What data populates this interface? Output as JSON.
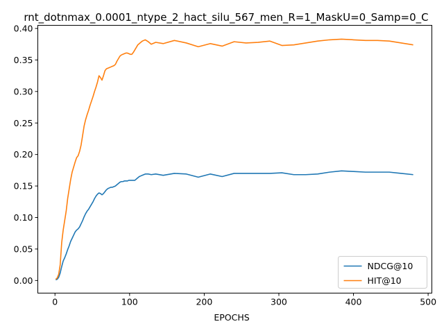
{
  "chart_data": {
    "type": "line",
    "title": "rnt_dotnmax_0.0001_ntype_2_hact_silu_567_men_R=1_MaskU=0_Samp=0_C",
    "xlabel": "EPOCHS",
    "ylabel": "",
    "xlim": [
      -23,
      505
    ],
    "ylim": [
      -0.02,
      0.405
    ],
    "xticks": [
      0,
      100,
      200,
      300,
      400,
      500
    ],
    "yticks": [
      0.0,
      0.05,
      0.1,
      0.15,
      0.2,
      0.25,
      0.3,
      0.35,
      0.4
    ],
    "grid": false,
    "legend_position": "lower-right",
    "series": [
      {
        "name": "NDCG@10",
        "color": "#1f77b4",
        "x": [
          1,
          3,
          5,
          7,
          9,
          11,
          13,
          15,
          17,
          19,
          21,
          23,
          25,
          27,
          29,
          31,
          33,
          35,
          37,
          39,
          41,
          43,
          45,
          47,
          49,
          51,
          53,
          55,
          57,
          59,
          61,
          63,
          65,
          67,
          69,
          71,
          73,
          75,
          77,
          79,
          81,
          83,
          85,
          87,
          89,
          91,
          93,
          95,
          97,
          99,
          101,
          103,
          105,
          107,
          109,
          111,
          113,
          115,
          117,
          119,
          121,
          125,
          129,
          135,
          145,
          160,
          176,
          192,
          208,
          224,
          240,
          256,
          272,
          288,
          304,
          320,
          336,
          352,
          368,
          384,
          400,
          416,
          432,
          448,
          464,
          480
        ],
        "values": [
          0.001,
          0.002,
          0.005,
          0.012,
          0.022,
          0.031,
          0.036,
          0.042,
          0.049,
          0.055,
          0.062,
          0.067,
          0.072,
          0.077,
          0.08,
          0.082,
          0.085,
          0.09,
          0.095,
          0.101,
          0.106,
          0.11,
          0.113,
          0.117,
          0.121,
          0.125,
          0.13,
          0.134,
          0.137,
          0.139,
          0.138,
          0.136,
          0.138,
          0.141,
          0.144,
          0.146,
          0.147,
          0.148,
          0.148,
          0.149,
          0.15,
          0.152,
          0.154,
          0.156,
          0.157,
          0.157,
          0.158,
          0.158,
          0.158,
          0.159,
          0.159,
          0.159,
          0.159,
          0.159,
          0.161,
          0.163,
          0.165,
          0.166,
          0.167,
          0.168,
          0.169,
          0.169,
          0.168,
          0.169,
          0.167,
          0.17,
          0.169,
          0.164,
          0.169,
          0.165,
          0.17,
          0.17,
          0.17,
          0.17,
          0.171,
          0.168,
          0.168,
          0.169,
          0.172,
          0.174,
          0.173,
          0.172,
          0.172,
          0.172,
          0.17,
          0.168
        ]
      },
      {
        "name": "HIT@10",
        "color": "#ff7f0e",
        "x": [
          1,
          3,
          5,
          7,
          9,
          11,
          13,
          15,
          17,
          19,
          21,
          23,
          25,
          27,
          29,
          31,
          33,
          35,
          37,
          39,
          41,
          43,
          45,
          47,
          49,
          51,
          53,
          55,
          57,
          59,
          61,
          63,
          65,
          67,
          69,
          71,
          73,
          75,
          77,
          79,
          81,
          83,
          85,
          87,
          89,
          91,
          93,
          95,
          97,
          99,
          101,
          103,
          105,
          107,
          109,
          111,
          113,
          115,
          117,
          119,
          121,
          125,
          129,
          135,
          145,
          160,
          176,
          192,
          208,
          224,
          240,
          256,
          272,
          288,
          304,
          320,
          336,
          352,
          368,
          384,
          400,
          416,
          432,
          448,
          464,
          480
        ],
        "values": [
          0.002,
          0.004,
          0.01,
          0.025,
          0.06,
          0.08,
          0.095,
          0.11,
          0.13,
          0.145,
          0.16,
          0.172,
          0.18,
          0.188,
          0.195,
          0.198,
          0.205,
          0.215,
          0.23,
          0.245,
          0.255,
          0.263,
          0.27,
          0.278,
          0.285,
          0.292,
          0.3,
          0.307,
          0.315,
          0.325,
          0.322,
          0.318,
          0.325,
          0.333,
          0.336,
          0.337,
          0.338,
          0.339,
          0.34,
          0.341,
          0.343,
          0.348,
          0.352,
          0.356,
          0.358,
          0.359,
          0.36,
          0.361,
          0.361,
          0.36,
          0.359,
          0.359,
          0.362,
          0.366,
          0.37,
          0.374,
          0.376,
          0.378,
          0.38,
          0.381,
          0.382,
          0.379,
          0.375,
          0.378,
          0.376,
          0.381,
          0.377,
          0.371,
          0.376,
          0.372,
          0.379,
          0.377,
          0.378,
          0.38,
          0.373,
          0.374,
          0.377,
          0.38,
          0.382,
          0.383,
          0.382,
          0.381,
          0.381,
          0.38,
          0.377,
          0.374
        ]
      }
    ]
  }
}
